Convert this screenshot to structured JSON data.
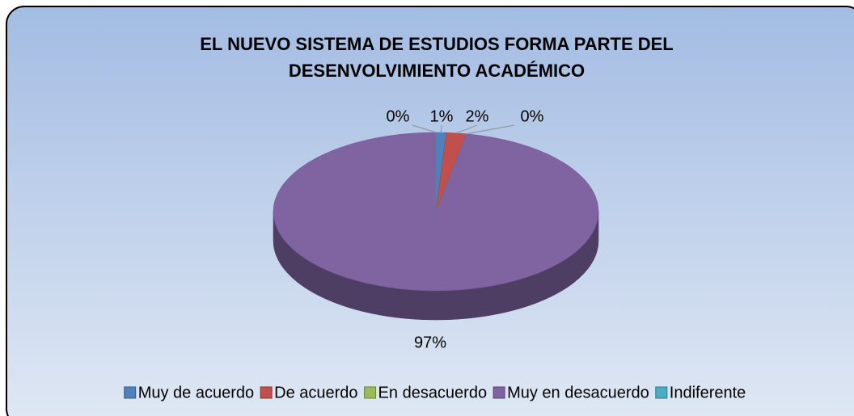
{
  "chart_data": {
    "type": "pie",
    "title": [
      "EL NUEVO SISTEMA DE ESTUDIOS FORMA PARTE DEL",
      "DESENVOLVIMIENTO ACADÉMICO"
    ],
    "categories": [
      "Muy de acuerdo",
      "De acuerdo",
      "En desacuerdo",
      "Muy en desacuerdo",
      "Indiferente"
    ],
    "values": [
      1,
      2,
      0,
      97,
      0
    ],
    "value_labels": [
      "1%",
      "2%",
      "0%",
      "97%",
      "0%"
    ],
    "colors": [
      "#4f81bd",
      "#c0504d",
      "#9bbb59",
      "#8064a2",
      "#4bacc6"
    ],
    "legend": "bottom"
  }
}
